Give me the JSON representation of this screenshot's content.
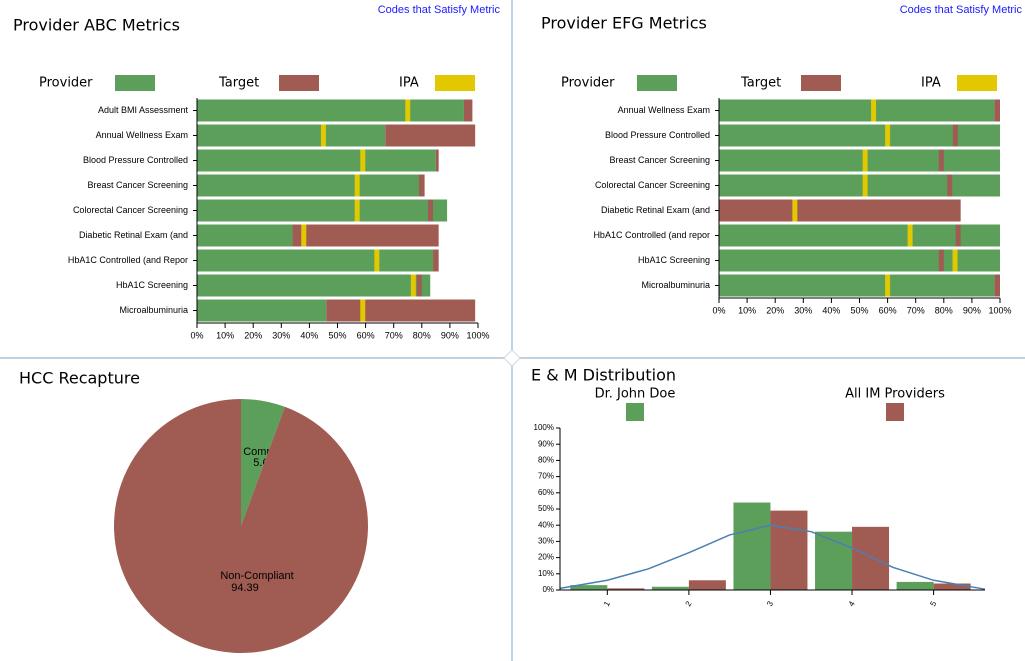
{
  "chart_data": [
    {
      "type": "bar",
      "orientation": "horizontal",
      "title": "Provider ABC Metrics",
      "link": "Codes that Satisfy Metric",
      "categories": [
        "Adult BMI Assessment",
        "Annual Wellness Exam",
        "Blood Pressure Controlled",
        "Breast Cancer Screening",
        "Colorectal Cancer Screening",
        "Diabetic Retinal Exam (and",
        "HbA1C Controlled (and Repor",
        "HbA1C Screening",
        "Microalbuminuria"
      ],
      "series": [
        {
          "name": "Provider",
          "color": "#5b9f5b",
          "values": [
            95,
            67,
            85,
            79,
            89,
            34,
            84,
            83,
            46
          ]
        },
        {
          "name": "Target",
          "color": "#a05c53",
          "values": [
            98,
            99,
            86,
            81,
            84,
            86,
            86,
            80,
            99
          ]
        },
        {
          "name": "IPA",
          "color": "#e2c800",
          "values": [
            75,
            45,
            59,
            57,
            57,
            38,
            64,
            77,
            59
          ]
        }
      ],
      "xlim": [
        0,
        100
      ],
      "xticks": [
        {
          "value": 0,
          "label": "0%"
        },
        {
          "value": 10,
          "label": "10%"
        },
        {
          "value": 20,
          "label": "20%"
        },
        {
          "value": 30,
          "label": "30%"
        },
        {
          "value": 40,
          "label": "40%"
        },
        {
          "value": 50,
          "label": "50%"
        },
        {
          "value": 60,
          "label": "60%"
        },
        {
          "value": 70,
          "label": "70%"
        },
        {
          "value": 80,
          "label": "80%"
        },
        {
          "value": 90,
          "label": "90%"
        },
        {
          "value": 100,
          "label": "100%"
        }
      ]
    },
    {
      "type": "bar",
      "orientation": "horizontal",
      "title": "Provider EFG Metrics",
      "link": "Codes that Satisfy Metric",
      "categories": [
        "Annual Wellness Exam",
        "Blood Pressure Controlled",
        "Breast Cancer Screening",
        "Colorectal Cancer Screening",
        "Diabetic Retinal Exam (and",
        "HbA1C Controlled (and repor",
        "HbA1C Screening",
        "Microalbuminuria"
      ],
      "series": [
        {
          "name": "Provider",
          "color": "#5b9f5b",
          "values": [
            98,
            100,
            100,
            100,
            0,
            100,
            100,
            98
          ]
        },
        {
          "name": "Target",
          "color": "#a05c53",
          "values": [
            100,
            85,
            80,
            83,
            86,
            86,
            80,
            100
          ]
        },
        {
          "name": "IPA",
          "color": "#e2c800",
          "values": [
            55,
            60,
            52,
            52,
            27,
            68,
            84,
            60
          ]
        }
      ],
      "xlim": [
        0,
        100
      ],
      "xticks": [
        {
          "value": 0,
          "label": "0%"
        },
        {
          "value": 10,
          "label": "10%"
        },
        {
          "value": 20,
          "label": "20%"
        },
        {
          "value": 30,
          "label": "30%"
        },
        {
          "value": 40,
          "label": "40%"
        },
        {
          "value": 50,
          "label": "50%"
        },
        {
          "value": 60,
          "label": "60%"
        },
        {
          "value": 70,
          "label": "70%"
        },
        {
          "value": 80,
          "label": "80%"
        },
        {
          "value": 90,
          "label": "90%"
        },
        {
          "value": 100,
          "label": "100%"
        }
      ]
    },
    {
      "type": "pie",
      "title": "HCC Recapture",
      "categories": [
        "Compliant",
        "Non-Compliant"
      ],
      "values": [
        5.61,
        94.39
      ],
      "colors": [
        "#5b9f5b",
        "#a05c53"
      ]
    },
    {
      "type": "bar",
      "orientation": "vertical",
      "title": "E & M Distribution",
      "x": [
        1,
        2,
        3,
        4,
        5
      ],
      "series": [
        {
          "name": "Dr. John Doe",
          "color": "#5b9f5b",
          "values": [
            3,
            2,
            54,
            36,
            5
          ]
        },
        {
          "name": "All IM Providers",
          "color": "#a05c53",
          "values": [
            1,
            6,
            49,
            39,
            4
          ]
        }
      ],
      "curve": {
        "color": "#4a7fb5",
        "x": [
          0.42,
          1,
          1.5,
          2,
          2.5,
          3,
          3.5,
          4,
          4.5,
          5,
          5.63
        ],
        "values": [
          1,
          6,
          13,
          23,
          34,
          40,
          36,
          26,
          14,
          6,
          0.5
        ]
      },
      "xlim": [
        0.42,
        5.63
      ],
      "xticks": [
        1,
        2,
        3,
        4,
        5
      ],
      "ylim": [
        0,
        100
      ],
      "yticks": [
        {
          "value": 0,
          "label": "0%"
        },
        {
          "value": 10,
          "label": "10%"
        },
        {
          "value": 20,
          "label": "20%"
        },
        {
          "value": 30,
          "label": "30%"
        },
        {
          "value": 40,
          "label": "40%"
        },
        {
          "value": 50,
          "label": "50%"
        },
        {
          "value": 60,
          "label": "60%"
        },
        {
          "value": 70,
          "label": "70%"
        },
        {
          "value": 80,
          "label": "80%"
        },
        {
          "value": 90,
          "label": "90%"
        },
        {
          "value": 100,
          "label": "100%"
        }
      ]
    }
  ]
}
